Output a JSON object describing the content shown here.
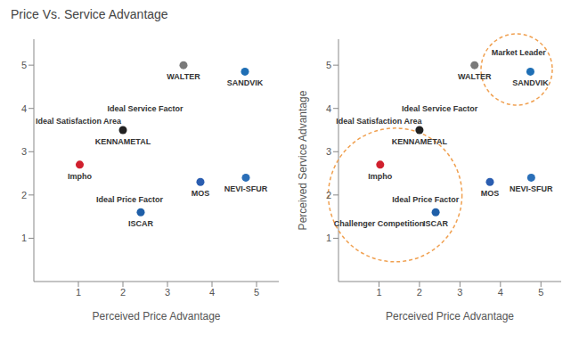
{
  "chart_data": [
    {
      "type": "scatter",
      "title": "Price Vs. Service Advantage",
      "x_label": "Perceived Price Advantage",
      "xlim": [
        0,
        5.5
      ],
      "xticks": [
        1,
        2,
        3,
        4,
        5
      ],
      "ylim": [
        0,
        5.6
      ],
      "yticks": [
        1,
        2,
        3,
        4,
        5
      ],
      "x": [
        3.36,
        4.74,
        2.0,
        1.03,
        2.4,
        3.74,
        4.76
      ],
      "values": [
        5.0,
        4.85,
        3.5,
        2.7,
        1.6,
        2.3,
        2.4
      ],
      "point_labels": [
        "WALTER",
        "SANDVIK",
        "KENNAMETAL",
        "Impho",
        "ISCAR",
        "MOS",
        "NEVI-SFUR"
      ],
      "colors": [
        "#7a7a7a",
        "#1f6fb5",
        "#222222",
        "#d0202e",
        "#1f5fa8",
        "#2a5db0",
        "#2a6fb8"
      ],
      "annotations": [
        {
          "text": "Ideal Satisfaction Area",
          "x": 1.0,
          "y": 3.7
        },
        {
          "text": "Ideal Service Factor",
          "x": 2.5,
          "y": 4.0
        },
        {
          "text": "Ideal Price Factor",
          "x": 2.15,
          "y": 1.9
        }
      ]
    },
    {
      "type": "scatter",
      "x_label": "Perceived Price Advantage",
      "y_label": "Perceived Service Advantage",
      "xlim": [
        0,
        5.5
      ],
      "xticks": [
        1,
        2,
        3,
        4,
        5
      ],
      "ylim": [
        0,
        5.6
      ],
      "yticks": [
        1,
        2,
        3,
        4,
        5
      ],
      "x": [
        3.36,
        4.74,
        2.0,
        1.03,
        2.4,
        3.74,
        4.76
      ],
      "values": [
        5.0,
        4.85,
        3.5,
        2.7,
        1.6,
        2.3,
        2.4
      ],
      "point_labels": [
        "WALTER",
        "SANDVIK",
        "KENNAMETAL",
        "Impho",
        "ISCAR",
        "MOS",
        "NEVI-SFUR"
      ],
      "colors": [
        "#7a7a7a",
        "#1f6fb5",
        "#222222",
        "#d0202e",
        "#1f5fa8",
        "#2a5db0",
        "#2a6fb8"
      ],
      "annotations": [
        {
          "text": "Ideal Satisfaction Area",
          "x": 1.0,
          "y": 3.7
        },
        {
          "text": "Ideal Service Factor",
          "x": 2.5,
          "y": 4.0
        },
        {
          "text": "Ideal Price Factor",
          "x": 2.15,
          "y": 1.9
        },
        {
          "text": "Challenger Competition",
          "x": 1.0,
          "y": 1.35
        },
        {
          "text": "Market Leader",
          "x": 4.45,
          "y": 5.3
        }
      ],
      "highlight_circles": [
        {
          "x": 1.4,
          "y": 2.0,
          "color": "#f0a050"
        },
        {
          "x": 4.4,
          "y": 4.9,
          "color": "#f0a050"
        }
      ]
    }
  ]
}
